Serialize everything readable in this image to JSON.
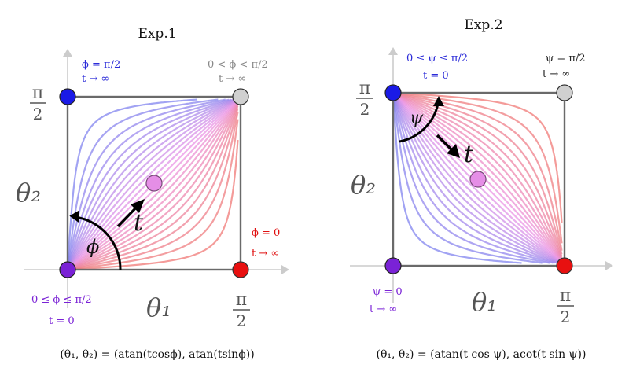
{
  "panels": [
    {
      "title": "Exp.1",
      "axis_x": "θ₁",
      "axis_y": "θ₂",
      "tick_x": "π/2",
      "tick_y": "π/2",
      "angle_label": "ϕ",
      "time_label": "t",
      "corner_top_left": [
        "ϕ = π/2",
        "t → ∞"
      ],
      "corner_top_right": [
        "0 < ϕ < π/2",
        "t → ∞"
      ],
      "corner_bottom_right": [
        "ϕ = 0",
        "t → ∞"
      ],
      "corner_bottom_left": [
        "0 ≤ ϕ ≤ π/2",
        "t = 0"
      ],
      "formula": "(θ₁, θ₂) = (atan(tcosϕ), atan(tsinϕ))"
    },
    {
      "title": "Exp.2",
      "axis_x": "θ₁",
      "axis_y": "θ₂",
      "tick_x": "π/2",
      "tick_y": "π/2",
      "angle_label": "ψ",
      "time_label": "t",
      "corner_top_left": [
        "0 ≤ ψ ≤ π/2",
        "t = 0"
      ],
      "corner_top_right": [
        "ψ = π/2",
        "t → ∞"
      ],
      "corner_bottom_left": [
        "ψ = 0",
        "t → ∞"
      ],
      "formula": "(θ₁, θ₂) = (atan(t cos ψ), acot(t sin ψ))"
    }
  ],
  "colors": {
    "blue": "#1a1ae6",
    "purple": "#7a22d6",
    "red": "#e01010",
    "gray": "#cccccc",
    "pink": "#e58ee6",
    "label_blue": "#2a2ad8",
    "label_purple": "#7a22d6",
    "label_red": "#e01010",
    "label_gray": "#777777"
  }
}
